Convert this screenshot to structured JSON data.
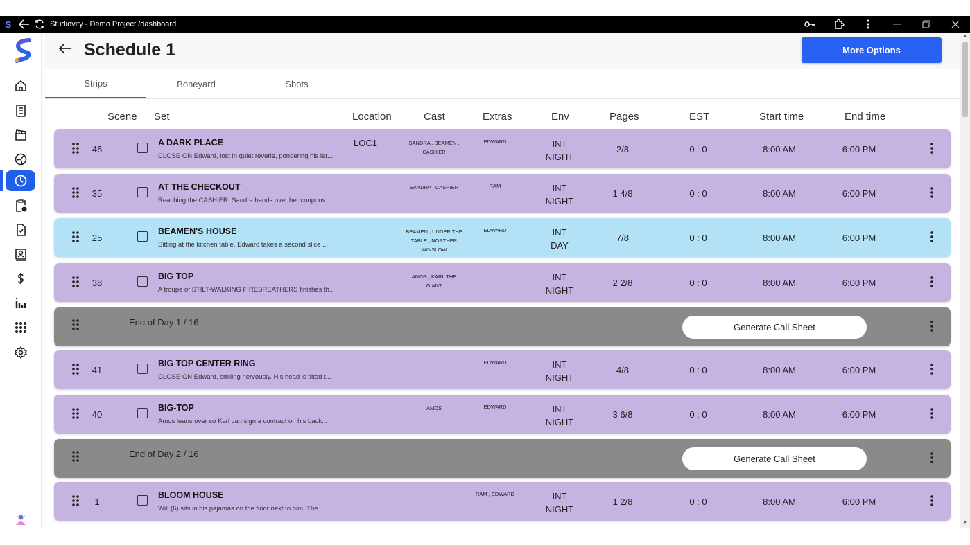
{
  "titlebar": {
    "logo": "S",
    "title": "Studiovity - Demo Project /dashboard"
  },
  "sidebar": {
    "items": [
      {
        "icon": "home-icon"
      },
      {
        "icon": "script-icon"
      },
      {
        "icon": "clapperboard-icon"
      },
      {
        "icon": "film-reel-icon"
      },
      {
        "icon": "schedule-clock-icon"
      },
      {
        "icon": "clipboard-clock-icon"
      },
      {
        "icon": "document-check-icon"
      },
      {
        "icon": "contacts-icon"
      },
      {
        "icon": "dollar-icon"
      },
      {
        "icon": "reports-icon"
      },
      {
        "icon": "apps-grid-icon"
      },
      {
        "icon": "settings-icon"
      }
    ]
  },
  "header": {
    "title": "Schedule 1",
    "more_options": "More Options"
  },
  "tabs": [
    "Strips",
    "Boneyard",
    "Shots"
  ],
  "columns": {
    "scene": "Scene",
    "set": "Set",
    "location": "Location",
    "cast": "Cast",
    "extras": "Extras",
    "env": "Env",
    "pages": "Pages",
    "est": "EST",
    "start": "Start time",
    "end": "End time"
  },
  "strips": [
    {
      "scene": "46",
      "title": "A DARK PLACE",
      "desc": "CLOSE ON Edward, lost in quiet reverie, pondering his lat...",
      "location": "LOC1",
      "cast": "SANDRA , BEAMEN , CASHIER",
      "extras": "EDWARD",
      "env1": "INT",
      "env2": "NIGHT",
      "pages": "2/8",
      "est": "0 : 0",
      "start": "8:00 AM",
      "end": "6:00 PM"
    },
    {
      "scene": "35",
      "title": "AT THE CHECKOUT",
      "desc": "Reaching the CASHIER, Sandra hands over her coupons....",
      "location": "",
      "cast": "SANDRA , CASHIER",
      "extras": "RAM",
      "env1": "INT",
      "env2": "NIGHT",
      "pages": "1 4/8",
      "est": "0 : 0",
      "start": "8:00 AM",
      "end": "6:00 PM"
    },
    {
      "scene": "25",
      "title": "BEAMEN'S HOUSE",
      "desc": "Sitting at the kitchen table, Edward takes a second slice ...",
      "location": "",
      "cast": "BEAMEN , UNDER THE TABLE , NORTHER WINSLOW",
      "extras": "EDWARD",
      "env1": "INT",
      "env2": "DAY",
      "pages": "7/8",
      "est": "0 : 0",
      "start": "8:00 AM",
      "end": "6:00 PM"
    },
    {
      "scene": "38",
      "title": "BIG TOP",
      "desc": "A troupe of STILT-WALKING FIREBREATHERS finishes th...",
      "location": "",
      "cast": "AMOS , KARL THE GIANT",
      "extras": "",
      "env1": "INT",
      "env2": "NIGHT",
      "pages": "2 2/8",
      "est": "0 : 0",
      "start": "8:00 AM",
      "end": "6:00 PM"
    },
    {
      "scene": "41",
      "title": "BIG TOP CENTER RING",
      "desc": "CLOSE ON Edward, smiling nervously. His head is tilted t...",
      "location": "",
      "cast": "",
      "extras": "EDWARD",
      "env1": "INT",
      "env2": "NIGHT",
      "pages": "4/8",
      "est": "0 : 0",
      "start": "8:00 AM",
      "end": "6:00 PM"
    },
    {
      "scene": "40",
      "title": "BIG-TOP",
      "desc": "Amos leans over so Karl can sign a contract on his back...",
      "location": "",
      "cast": "AMOS",
      "extras": "EDWARD",
      "env1": "INT",
      "env2": "NIGHT",
      "pages": "3 6/8",
      "est": "0 : 0",
      "start": "8:00 AM",
      "end": "6:00 PM"
    },
    {
      "scene": "1",
      "title": "BLOOM HOUSE",
      "desc": "Will (6) sits in his pajamas on the floor next to him. The ...",
      "location": "",
      "cast": "",
      "extras": "RAM , EDWARD",
      "env1": "INT",
      "env2": "NIGHT",
      "pages": "1 2/8",
      "est": "0 : 0",
      "start": "8:00 AM",
      "end": "6:00 PM"
    }
  ],
  "end_of_day": [
    {
      "label": "End of Day 1 / 16",
      "button": "Generate Call Sheet"
    },
    {
      "label": "End of Day 2 / 16",
      "button": "Generate Call Sheet"
    }
  ],
  "colors": {
    "night": "#c5b3e2",
    "day": "#b3e1f5",
    "end_of_day": "#8a8a8a",
    "accent": "#2962f2"
  }
}
